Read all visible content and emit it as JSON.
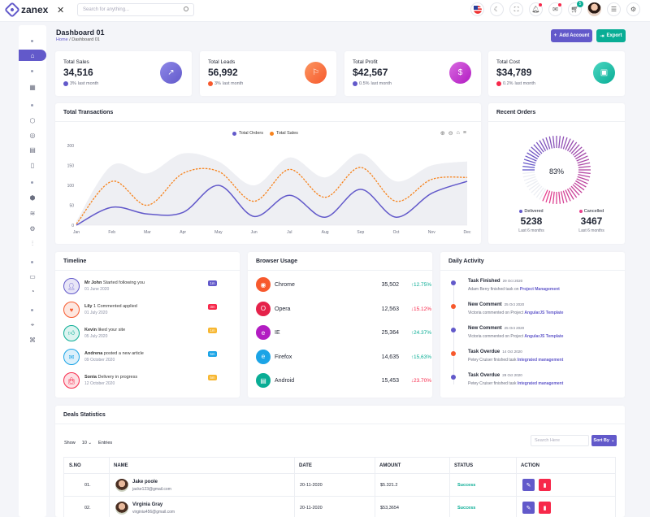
{
  "app": {
    "name": "zanex"
  },
  "search": {
    "placeholder": "Search for anything..."
  },
  "topbar": {
    "notification_count": "5"
  },
  "page": {
    "title": "Dashboard 01",
    "breadcrumb_home": "Home",
    "breadcrumb_current": "Dashboard 01"
  },
  "actions": {
    "add_account": "Add Account",
    "export": "Export"
  },
  "stats": [
    {
      "label": "Total Sales",
      "value": "34,516",
      "pct": "3%",
      "period": "last month",
      "color": "#6259ca",
      "trend": "up"
    },
    {
      "label": "Total Leads",
      "value": "56,992",
      "pct": "3%",
      "period": "last month",
      "color": "#f7592d",
      "trend": "down"
    },
    {
      "label": "Total Profit",
      "value": "$42,567",
      "pct": "0.5%",
      "period": "last month",
      "color": "#6259ca",
      "trend": "up"
    },
    {
      "label": "Total Cost",
      "value": "$34,789",
      "pct": "0.2%",
      "period": "last month",
      "color": "#f7284a",
      "trend": "down"
    }
  ],
  "transactions": {
    "title": "Total Transactions"
  },
  "chart_data": {
    "type": "line",
    "categories": [
      "Jan",
      "Feb",
      "Mar",
      "Apr",
      "May",
      "Jun",
      "Jul",
      "Aug",
      "Sep",
      "Oct",
      "Nov",
      "Dec"
    ],
    "ylim": [
      0,
      200
    ],
    "yticks": [
      "0",
      "50",
      "100",
      "150",
      "200"
    ],
    "series": [
      {
        "name": "Total Orders",
        "color": "#6259ca",
        "values": [
          0,
          45,
          28,
          32,
          100,
          22,
          75,
          20,
          90,
          20,
          80,
          110
        ]
      },
      {
        "name": "Total Sales",
        "color": "#f7831d",
        "values": [
          3,
          110,
          50,
          130,
          135,
          60,
          140,
          70,
          145,
          60,
          115,
          120
        ]
      }
    ],
    "background_series": {
      "color": "#eeeff3",
      "values": [
        10,
        150,
        130,
        180,
        160,
        100,
        170,
        120,
        180,
        110,
        150,
        160
      ]
    }
  },
  "recent_orders": {
    "title": "Recent Orders",
    "percent": "83%",
    "percent_value": 83,
    "delivered_label": "Delivered",
    "delivered_value": "5238",
    "delivered_period": "Last 6 months",
    "cancelled_label": "Cancelled",
    "cancelled_value": "3467",
    "cancelled_period": "Last 6 months"
  },
  "timeline": {
    "title": "Timeline",
    "items": [
      {
        "name": "Mr John",
        "text": "Started following you",
        "date": "01 June 2020",
        "badge": "1m",
        "color": "#6259ca",
        "bg": "#e8e6f7"
      },
      {
        "name": "Lily",
        "text": "1 Commented applied",
        "date": "01 July 2020",
        "badge": "3m",
        "color": "#f7592d",
        "bg": "#fde7e0"
      },
      {
        "name": "Kevin",
        "text": "liked your site",
        "date": "05 July 2020",
        "badge": "1m",
        "color": "#09ad95",
        "bg": "#dcf4f0"
      },
      {
        "name": "Andrena",
        "text": "posted a new article",
        "date": "09 October 2020",
        "badge": "5m",
        "color": "#1ba4e6",
        "bg": "#dcf0fb"
      },
      {
        "name": "Sonia",
        "text": "Delivery in progress",
        "date": "12 October 2020",
        "badge": "5m",
        "color": "#f7284a",
        "bg": "#fde0e4"
      }
    ],
    "badge_colors": [
      "#6259ca",
      "#f7284a",
      "#f7b731",
      "#1ba4e6",
      "#f7b731"
    ]
  },
  "browser": {
    "title": "Browser Usage",
    "items": [
      {
        "name": "Chrome",
        "value": "35,502",
        "pct": "12.75%",
        "trend": "up",
        "color": "#f7592d"
      },
      {
        "name": "Opera",
        "value": "12,563",
        "pct": "15.12%",
        "trend": "down",
        "color": "#e5224a"
      },
      {
        "name": "IE",
        "value": "25,364",
        "pct": "24.37%",
        "trend": "up",
        "color": "#b21cc2"
      },
      {
        "name": "Firefox",
        "value": "14,635",
        "pct": "15,63%",
        "trend": "up",
        "color": "#1ba4e6"
      },
      {
        "name": "Android",
        "value": "15,453",
        "pct": "23.70%",
        "trend": "down",
        "color": "#09ad95"
      }
    ]
  },
  "activity": {
    "title": "Daily Activity",
    "items": [
      {
        "title": "Task Finished",
        "date": "29 Oct 2020",
        "desc": "Adam Berry finished task on",
        "link": "Project Management",
        "color": "#6259ca"
      },
      {
        "title": "New Comment",
        "date": "25 Oct 2020",
        "desc": "Victoria commented on Project",
        "link": "AngularJS Template",
        "color": "#f7592d"
      },
      {
        "title": "New Comment",
        "date": "25 Oct 2020",
        "desc": "Victoria commented on Project",
        "link": "AngularJS Template",
        "color": "#6259ca"
      },
      {
        "title": "Task Overdue",
        "date": "14 Oct 2020",
        "desc": "Petey Cruiser finished task",
        "link": "Integrated management",
        "color": "#f7592d"
      },
      {
        "title": "Task Overdue",
        "date": "29 Oct 2020",
        "desc": "Petey Cruiser finished task",
        "link": "Integrated management",
        "color": "#6259ca"
      }
    ]
  },
  "deals": {
    "title": "Deals Statistics",
    "show_label": "Show",
    "entries_value": "10",
    "entries_label": "Entries",
    "search_placeholder": "Search Here",
    "sort_label": "Sort By",
    "columns": [
      "S.NO",
      "NAME",
      "DATE",
      "AMOUNT",
      "STATUS",
      "ACTION"
    ],
    "rows": [
      {
        "sno": "01.",
        "name": "Jake poole",
        "email": "jacke123@gmail.com",
        "date": "20-11-2020",
        "amount": "$5.321.2",
        "status": "Success"
      },
      {
        "sno": "02.",
        "name": "Virginia Gray",
        "email": "virginia456@gmail.com",
        "date": "20-11-2020",
        "amount": "$53,3654",
        "status": "Success"
      }
    ]
  }
}
